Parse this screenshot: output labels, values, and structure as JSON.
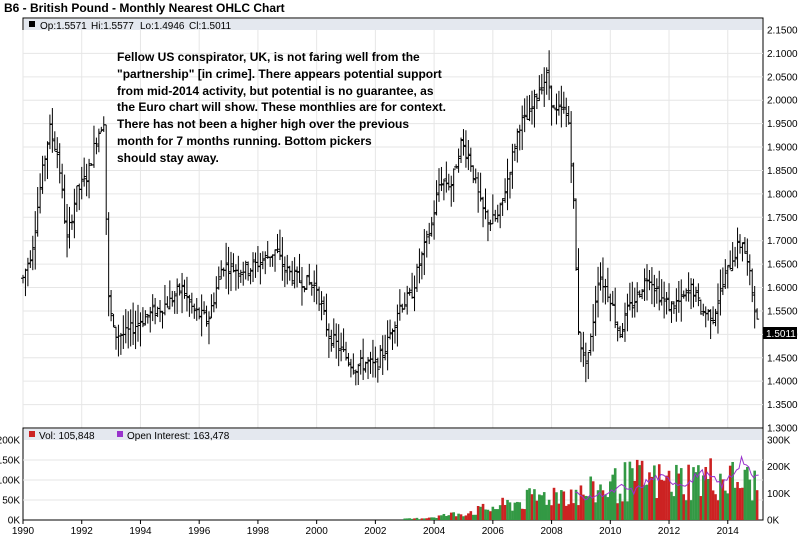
{
  "chart_data": [
    {
      "type": "ohlc",
      "title": "B6 - British Pound - Monthly Nearest OHLC Chart",
      "info": {
        "open_label": "Op:1.5571",
        "high_label": "Hi:1.5577",
        "low_label": "Lo:1.4946",
        "close_label": "Cl:1.5011"
      },
      "last_price_label": "1.5011",
      "annotation_lines": [
        "Fellow US conspirator, UK, is not faring well from the",
        "\"partnership\" [in crime].  There appears potential support",
        "from mid-2014 activity, but potential is no guarantee, as",
        "the Euro chart will show.  These monthlies are for context.",
        "There has not been a higher high over the previous",
        "month for 7 months running.  Bottom pickers",
        "should stay away."
      ],
      "x_ticks": [
        "1990",
        "1992",
        "1994",
        "1996",
        "1998",
        "2000",
        "2002",
        "2004",
        "2006",
        "2008",
        "2010",
        "2012",
        "2014"
      ],
      "xlim": [
        1990,
        2015.2
      ],
      "ylim": [
        1.3,
        2.15
      ],
      "y_ticks": [
        "2.1500",
        "2.1000",
        "2.0500",
        "2.0000",
        "1.9500",
        "1.9000",
        "1.8500",
        "1.8000",
        "1.7500",
        "1.7000",
        "1.6500",
        "1.6000",
        "1.5500",
        "1.5000",
        "1.4500",
        "1.4000",
        "1.3500",
        "1.3000"
      ],
      "price_anchors": [
        [
          1990.0,
          1.62
        ],
        [
          1990.3,
          1.68
        ],
        [
          1990.6,
          1.82
        ],
        [
          1990.9,
          1.94
        ],
        [
          1991.2,
          1.88
        ],
        [
          1991.5,
          1.7
        ],
        [
          1991.8,
          1.8
        ],
        [
          1992.2,
          1.84
        ],
        [
          1992.5,
          1.92
        ],
        [
          1992.75,
          1.96
        ],
        [
          1992.9,
          1.58
        ],
        [
          1993.1,
          1.5
        ],
        [
          1993.5,
          1.5
        ],
        [
          1994.0,
          1.53
        ],
        [
          1994.5,
          1.55
        ],
        [
          1995.0,
          1.57
        ],
        [
          1995.4,
          1.6
        ],
        [
          1995.8,
          1.55
        ],
        [
          1996.3,
          1.53
        ],
        [
          1996.8,
          1.65
        ],
        [
          1997.2,
          1.64
        ],
        [
          1997.7,
          1.64
        ],
        [
          1998.2,
          1.66
        ],
        [
          1998.6,
          1.68
        ],
        [
          1998.9,
          1.64
        ],
        [
          1999.3,
          1.62
        ],
        [
          1999.7,
          1.61
        ],
        [
          2000.0,
          1.6
        ],
        [
          2000.4,
          1.5
        ],
        [
          2000.9,
          1.46
        ],
        [
          2001.3,
          1.43
        ],
        [
          2001.7,
          1.44
        ],
        [
          2002.0,
          1.43
        ],
        [
          2002.4,
          1.48
        ],
        [
          2002.8,
          1.56
        ],
        [
          2003.2,
          1.58
        ],
        [
          2003.5,
          1.65
        ],
        [
          2003.9,
          1.73
        ],
        [
          2004.2,
          1.83
        ],
        [
          2004.6,
          1.82
        ],
        [
          2004.9,
          1.91
        ],
        [
          2005.2,
          1.88
        ],
        [
          2005.6,
          1.77
        ],
        [
          2005.9,
          1.74
        ],
        [
          2006.2,
          1.75
        ],
        [
          2006.6,
          1.86
        ],
        [
          2006.9,
          1.95
        ],
        [
          2007.2,
          1.96
        ],
        [
          2007.6,
          2.03
        ],
        [
          2007.85,
          2.05
        ],
        [
          2008.1,
          1.97
        ],
        [
          2008.4,
          1.98
        ],
        [
          2008.6,
          1.95
        ],
        [
          2008.75,
          1.78
        ],
        [
          2008.9,
          1.52
        ],
        [
          2009.1,
          1.44
        ],
        [
          2009.3,
          1.47
        ],
        [
          2009.6,
          1.63
        ],
        [
          2010.0,
          1.58
        ],
        [
          2010.3,
          1.5
        ],
        [
          2010.6,
          1.55
        ],
        [
          2010.9,
          1.58
        ],
        [
          2011.3,
          1.63
        ],
        [
          2011.7,
          1.58
        ],
        [
          2012.0,
          1.56
        ],
        [
          2012.4,
          1.57
        ],
        [
          2012.8,
          1.6
        ],
        [
          2013.1,
          1.55
        ],
        [
          2013.5,
          1.54
        ],
        [
          2013.9,
          1.62
        ],
        [
          2014.2,
          1.67
        ],
        [
          2014.5,
          1.7
        ],
        [
          2014.7,
          1.64
        ],
        [
          2014.9,
          1.57
        ],
        [
          2015.05,
          1.5
        ]
      ],
      "volume_panel": {
        "legend": [
          "Vol: 105,848",
          "Open Interest: 163,478"
        ],
        "volume_color": "#cc2222",
        "oi_color": "#9933cc",
        "left_ticks": [
          "200K",
          "150K",
          "100K",
          "50K",
          "0K"
        ],
        "right_ticks": [
          "300K",
          "200K",
          "100K",
          "0K"
        ],
        "volume_start": 2003.0,
        "volume_anchors": [
          [
            2003.0,
            3
          ],
          [
            2003.5,
            5
          ],
          [
            2004.0,
            10
          ],
          [
            2004.5,
            16
          ],
          [
            2005.0,
            22
          ],
          [
            2005.5,
            30
          ],
          [
            2006.0,
            38
          ],
          [
            2006.5,
            48
          ],
          [
            2007.0,
            58
          ],
          [
            2007.5,
            70
          ],
          [
            2008.0,
            80
          ],
          [
            2008.5,
            88
          ],
          [
            2009.0,
            78
          ],
          [
            2009.5,
            92
          ],
          [
            2010.0,
            105
          ],
          [
            2010.5,
            118
          ],
          [
            2011.0,
            125
          ],
          [
            2011.5,
            120
          ],
          [
            2012.0,
            118
          ],
          [
            2012.5,
            125
          ],
          [
            2013.0,
            130
          ],
          [
            2013.5,
            132
          ],
          [
            2014.0,
            125
          ],
          [
            2014.5,
            120
          ],
          [
            2015.0,
            110
          ]
        ],
        "oi_anchors": [
          [
            2008.8,
            100
          ],
          [
            2009.2,
            80
          ],
          [
            2009.6,
            95
          ],
          [
            2010.0,
            100
          ],
          [
            2010.4,
            125
          ],
          [
            2010.8,
            105
          ],
          [
            2011.2,
            140
          ],
          [
            2011.6,
            160
          ],
          [
            2012.0,
            150
          ],
          [
            2012.4,
            135
          ],
          [
            2012.8,
            145
          ],
          [
            2013.0,
            180
          ],
          [
            2013.4,
            160
          ],
          [
            2013.8,
            130
          ],
          [
            2014.2,
            175
          ],
          [
            2014.5,
            235
          ],
          [
            2014.8,
            160
          ],
          [
            2015.1,
            165
          ]
        ]
      }
    }
  ]
}
